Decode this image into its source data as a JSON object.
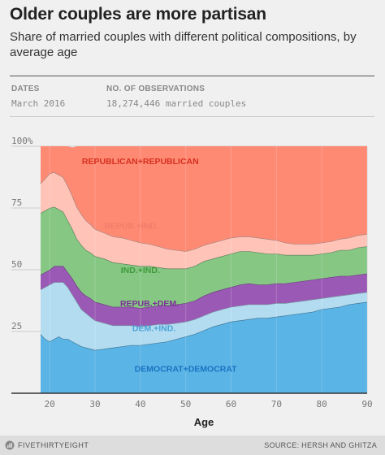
{
  "title": "Older couples are more partisan",
  "subtitle": "Share of married couples with different political compositions, by average age",
  "meta": {
    "dates_label": "DATES",
    "dates_value": "March 2016",
    "obs_label": "NO. OF OBSERVATIONS",
    "obs_value": "18,274,446 married couples"
  },
  "chart_data": {
    "type": "area",
    "stacked": true,
    "xlabel": "Age",
    "ylabel": "",
    "xlim": [
      18,
      90
    ],
    "ylim": [
      0,
      100
    ],
    "xticks": [
      20,
      30,
      40,
      50,
      60,
      70,
      80,
      90
    ],
    "yticks": [
      0,
      25,
      50,
      75,
      100
    ],
    "ytick_labels": [
      "",
      "25",
      "50",
      "75",
      "100%"
    ],
    "grid": true,
    "x": [
      18,
      19,
      20,
      21,
      22,
      23,
      24,
      25,
      26,
      27,
      28,
      29,
      30,
      32,
      34,
      36,
      38,
      40,
      42,
      44,
      46,
      48,
      50,
      52,
      54,
      56,
      58,
      60,
      62,
      64,
      66,
      68,
      70,
      72,
      74,
      76,
      78,
      80,
      82,
      84,
      86,
      88,
      90
    ],
    "series": [
      {
        "name": "DEMOCRAT+DEMOCRAT",
        "color": "#5ab4e5",
        "values": [
          24,
          22,
          21,
          22,
          23,
          22,
          22,
          21,
          20,
          19,
          18.5,
          18,
          17.5,
          18,
          18.5,
          19,
          19.5,
          19.5,
          20,
          20.5,
          21,
          22,
          23,
          24,
          25.5,
          27,
          28,
          29,
          29.5,
          30,
          30.5,
          30.5,
          31,
          31.5,
          32,
          32.5,
          33,
          34,
          34.5,
          35,
          36,
          36.5,
          37
        ]
      },
      {
        "name": "DEM.+IND.",
        "color": "#b3dcf1",
        "values": [
          18,
          21,
          23,
          23,
          22,
          23,
          21,
          19,
          17,
          15,
          14,
          13,
          12,
          10.5,
          9,
          8.5,
          8,
          7.5,
          7.5,
          7.5,
          7,
          6.5,
          6,
          6,
          6,
          6,
          6,
          6,
          6,
          6,
          5.5,
          5.5,
          5.5,
          5,
          5,
          5,
          5,
          4.5,
          4.5,
          4.5,
          4,
          4,
          4
        ]
      },
      {
        "name": "REPUB.+DEM.",
        "color": "#9b59b6",
        "values": [
          6,
          6,
          6,
          6.5,
          6.5,
          6.5,
          6,
          6.5,
          6.5,
          7,
          7,
          7.5,
          7.5,
          7.5,
          7.5,
          7.5,
          7.5,
          7.5,
          7.5,
          7.5,
          7.5,
          7.5,
          7.5,
          7.5,
          8,
          8,
          8,
          8,
          8.5,
          8.5,
          8,
          8,
          8,
          8,
          8,
          8,
          8,
          8,
          8,
          8,
          7.5,
          7.5,
          7.5
        ]
      },
      {
        "name": "IND.+IND.",
        "color": "#86c784",
        "values": [
          25,
          25,
          25,
          24,
          23,
          22,
          21,
          20,
          19,
          19,
          18.5,
          18.5,
          18.5,
          18.5,
          18,
          17.5,
          17,
          17,
          16.5,
          15.5,
          15,
          14.5,
          14,
          14,
          14,
          13.5,
          13.5,
          13.5,
          13.5,
          13,
          13,
          12.5,
          12,
          11.5,
          11,
          10.5,
          10,
          10,
          10,
          10.5,
          10.5,
          11,
          11
        ]
      },
      {
        "name": "REPUB.+IND.",
        "color": "#ffc3b8",
        "values": [
          12,
          13,
          14,
          14,
          14,
          14,
          14,
          13.5,
          13,
          12.5,
          12,
          11.5,
          11,
          10.5,
          10.5,
          10.5,
          10,
          9.5,
          9,
          8.5,
          8,
          7.5,
          7,
          7,
          6.5,
          6.5,
          6.5,
          6.5,
          6,
          6,
          6,
          6,
          5.5,
          5,
          4.5,
          4.5,
          4.5,
          4.5,
          4.5,
          4.5,
          5,
          5,
          5
        ]
      },
      {
        "name": "REPUBLICAN+REPUBLICAN",
        "color": "#ff8a74",
        "values": [
          15,
          13,
          11,
          10.5,
          11.5,
          12.5,
          16,
          19.5,
          24.5,
          27.5,
          30,
          31.5,
          33.5,
          35,
          36.5,
          37,
          38,
          39,
          39.5,
          40.5,
          41.5,
          42,
          42.5,
          41.5,
          40,
          39,
          38,
          37,
          36.5,
          36.5,
          37,
          37.5,
          38,
          39,
          39.5,
          39.5,
          39.5,
          39,
          38.5,
          37.5,
          37,
          36,
          35.5
        ]
      }
    ],
    "label_colors": [
      "#1a73c2",
      "#4aa3d8",
      "#7d2d99",
      "#3f9b3a",
      "#f07d6a",
      "#d6301f"
    ],
    "label_positions": [
      [
        50,
        10
      ],
      [
        43,
        26.5
      ],
      [
        42,
        36.5
      ],
      [
        40,
        50
      ],
      [
        38,
        68
      ],
      [
        40,
        94
      ]
    ],
    "source": "SOURCE: HERSH AND GHITZA",
    "brand": "FIVETHIRTYEIGHT"
  }
}
